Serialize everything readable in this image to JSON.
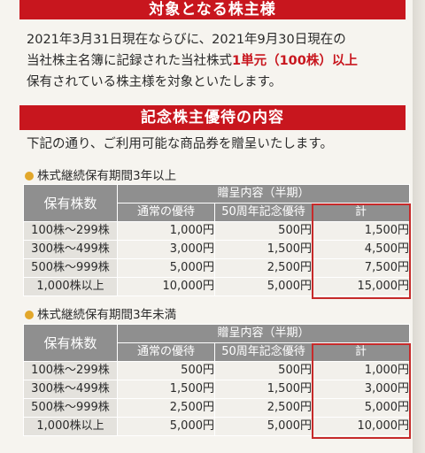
{
  "sections": {
    "eligible_title": "対象となる株主様",
    "eligible_lines": [
      "2021年3月31日現在ならびに、2021年9月30日現在の",
      "当社株主名簿に記録された当社株式",
      "保有されている株主様を対象といたします。"
    ],
    "eligible_highlight": "1単元（100株）以上",
    "benefit_title": "記念株主優待の内容",
    "benefit_intro": "下記の通り、ご利用可能な商品券を贈呈いたします。"
  },
  "tables": [
    {
      "title": "株式継続保有期間3年以上",
      "headers": {
        "holdings": "保有株数",
        "group": "贈呈内容（半期）",
        "regular": "通常の優待",
        "anniversary": "50周年記念優待",
        "total": "計"
      },
      "rows": [
        {
          "shares": "100株～299株",
          "regular": "1,000円",
          "anniversary": "500円",
          "total": "1,500円"
        },
        {
          "shares": "300株～499株",
          "regular": "3,000円",
          "anniversary": "1,500円",
          "total": "4,500円"
        },
        {
          "shares": "500株～999株",
          "regular": "5,000円",
          "anniversary": "2,500円",
          "total": "7,500円"
        },
        {
          "shares": "1,000株以上",
          "regular": "10,000円",
          "anniversary": "5,000円",
          "total": "15,000円"
        }
      ]
    },
    {
      "title": "株式継続保有期間3年未満",
      "headers": {
        "holdings": "保有株数",
        "group": "贈呈内容（半期）",
        "regular": "通常の優待",
        "anniversary": "50周年記念優待",
        "total": "計"
      },
      "rows": [
        {
          "shares": "100株～299株",
          "regular": "500円",
          "anniversary": "500円",
          "total": "1,000円"
        },
        {
          "shares": "300株～499株",
          "regular": "1,500円",
          "anniversary": "1,500円",
          "total": "3,000円"
        },
        {
          "shares": "500株～999株",
          "regular": "2,500円",
          "anniversary": "2,500円",
          "total": "5,000円"
        },
        {
          "shares": "1,000株以上",
          "regular": "5,000円",
          "anniversary": "5,000円",
          "total": "10,000円"
        }
      ]
    }
  ],
  "colors": {
    "accent_red": "#c8161e",
    "header_gray": "#8f8f8f",
    "bullet": "#e2a72b"
  }
}
